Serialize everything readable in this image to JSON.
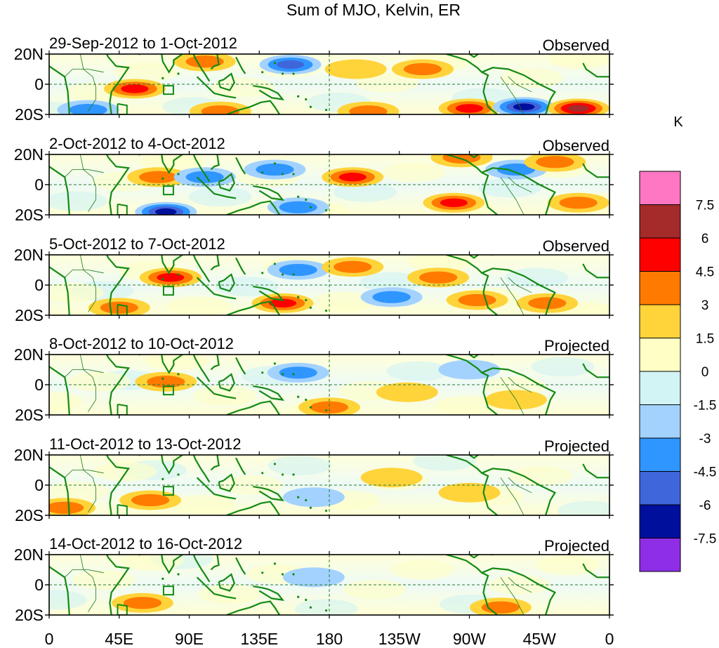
{
  "title": "Sum of MJO, Kelvin, ER",
  "lat_ticks": [
    "20N",
    "0",
    "20S"
  ],
  "lon_ticks": [
    "0",
    "45E",
    "90E",
    "135E",
    "180",
    "135W",
    "90W",
    "45W",
    "0"
  ],
  "colorbar": {
    "unit": "K",
    "levels": [
      "7.5",
      "6",
      "4.5",
      "3",
      "1.5",
      "0",
      "-1.5",
      "-3",
      "-4.5",
      "-6",
      "-7.5"
    ],
    "colors": [
      "#ff77c3",
      "#a52a2a",
      "#ff0000",
      "#ff7a00",
      "#ffd43b",
      "#ffffc5",
      "#d2f4f4",
      "#a3d2ff",
      "#2f96ff",
      "#3f66db",
      "#000f9c",
      "#8e2ee7"
    ]
  },
  "panels": [
    {
      "date": "29-Sep-2012 to 1-Oct-2012",
      "type": "Observed"
    },
    {
      "date": "2-Oct-2012 to 4-Oct-2012",
      "type": "Observed"
    },
    {
      "date": "5-Oct-2012 to 7-Oct-2012",
      "type": "Observed"
    },
    {
      "date": "8-Oct-2012 to 10-Oct-2012",
      "type": "Projected"
    },
    {
      "date": "11-Oct-2012 to 13-Oct-2012",
      "type": "Projected"
    },
    {
      "date": "14-Oct-2012 to 16-Oct-2012",
      "type": "Projected"
    }
  ],
  "chart_data": {
    "type": "heatmap",
    "title": "Sum of MJO, Kelvin, ER",
    "x_axis": {
      "range": [
        "0",
        "0"
      ],
      "ticks": [
        "0",
        "45E",
        "90E",
        "135E",
        "180",
        "135W",
        "90W",
        "45W",
        "0"
      ]
    },
    "y_axis": {
      "range": [
        "20S",
        "20N"
      ],
      "ticks": [
        "20N",
        "0",
        "20S"
      ]
    },
    "unit": "K",
    "grid": "dashed lines at equator and 180",
    "blobs": [
      [
        {
          "lon": 55,
          "lat": -3,
          "value": 5
        },
        {
          "lon": 100,
          "lat": 15,
          "value": 4
        },
        {
          "lon": 155,
          "lat": 13,
          "value": -5
        },
        {
          "lon": 197,
          "lat": 10,
          "value": 2
        },
        {
          "lon": 240,
          "lat": 10,
          "value": 3
        },
        {
          "lon": 270,
          "lat": -16,
          "value": 5
        },
        {
          "lon": 305,
          "lat": -15,
          "value": -6
        },
        {
          "lon": 340,
          "lat": -16,
          "value": 7
        },
        {
          "lon": 25,
          "lat": -17,
          "value": -4
        },
        {
          "lon": 110,
          "lat": -18,
          "value": 3
        },
        {
          "lon": 205,
          "lat": -18,
          "value": 3
        }
      ],
      [
        {
          "lon": 70,
          "lat": 5,
          "value": 4
        },
        {
          "lon": 75,
          "lat": -18,
          "value": -6
        },
        {
          "lon": 145,
          "lat": 10,
          "value": -4
        },
        {
          "lon": 160,
          "lat": -15,
          "value": -4
        },
        {
          "lon": 195,
          "lat": 5,
          "value": 5
        },
        {
          "lon": 260,
          "lat": -12,
          "value": 5
        },
        {
          "lon": 265,
          "lat": 18,
          "value": 3
        },
        {
          "lon": 300,
          "lat": 10,
          "value": -4
        },
        {
          "lon": 325,
          "lat": 15,
          "value": 3
        },
        {
          "lon": 100,
          "lat": 5,
          "value": -3
        },
        {
          "lon": 340,
          "lat": -12,
          "value": 3
        }
      ],
      [
        {
          "lon": 78,
          "lat": 5,
          "value": 5
        },
        {
          "lon": 150,
          "lat": -12,
          "value": 5
        },
        {
          "lon": 160,
          "lat": 10,
          "value": -4
        },
        {
          "lon": 195,
          "lat": 12,
          "value": 3
        },
        {
          "lon": 220,
          "lat": -8,
          "value": -4
        },
        {
          "lon": 250,
          "lat": 5,
          "value": 4
        },
        {
          "lon": 275,
          "lat": -10,
          "value": 4
        },
        {
          "lon": 320,
          "lat": -12,
          "value": 4
        },
        {
          "lon": 45,
          "lat": -15,
          "value": 4
        }
      ],
      [
        {
          "lon": 75,
          "lat": 2,
          "value": 3
        },
        {
          "lon": 180,
          "lat": -15,
          "value": 4
        },
        {
          "lon": 230,
          "lat": -5,
          "value": 2
        },
        {
          "lon": 160,
          "lat": 8,
          "value": -3
        },
        {
          "lon": 270,
          "lat": 10,
          "value": -2
        },
        {
          "lon": 300,
          "lat": -10,
          "value": 2
        }
      ],
      [
        {
          "lon": 65,
          "lat": -10,
          "value": 4
        },
        {
          "lon": 170,
          "lat": -8,
          "value": -2
        },
        {
          "lon": 220,
          "lat": 5,
          "value": 2
        },
        {
          "lon": 270,
          "lat": -5,
          "value": 2
        },
        {
          "lon": 10,
          "lat": -15,
          "value": 3
        }
      ],
      [
        {
          "lon": 60,
          "lat": -12,
          "value": 3
        },
        {
          "lon": 290,
          "lat": -15,
          "value": 3
        },
        {
          "lon": 170,
          "lat": 5,
          "value": -2
        }
      ]
    ]
  }
}
